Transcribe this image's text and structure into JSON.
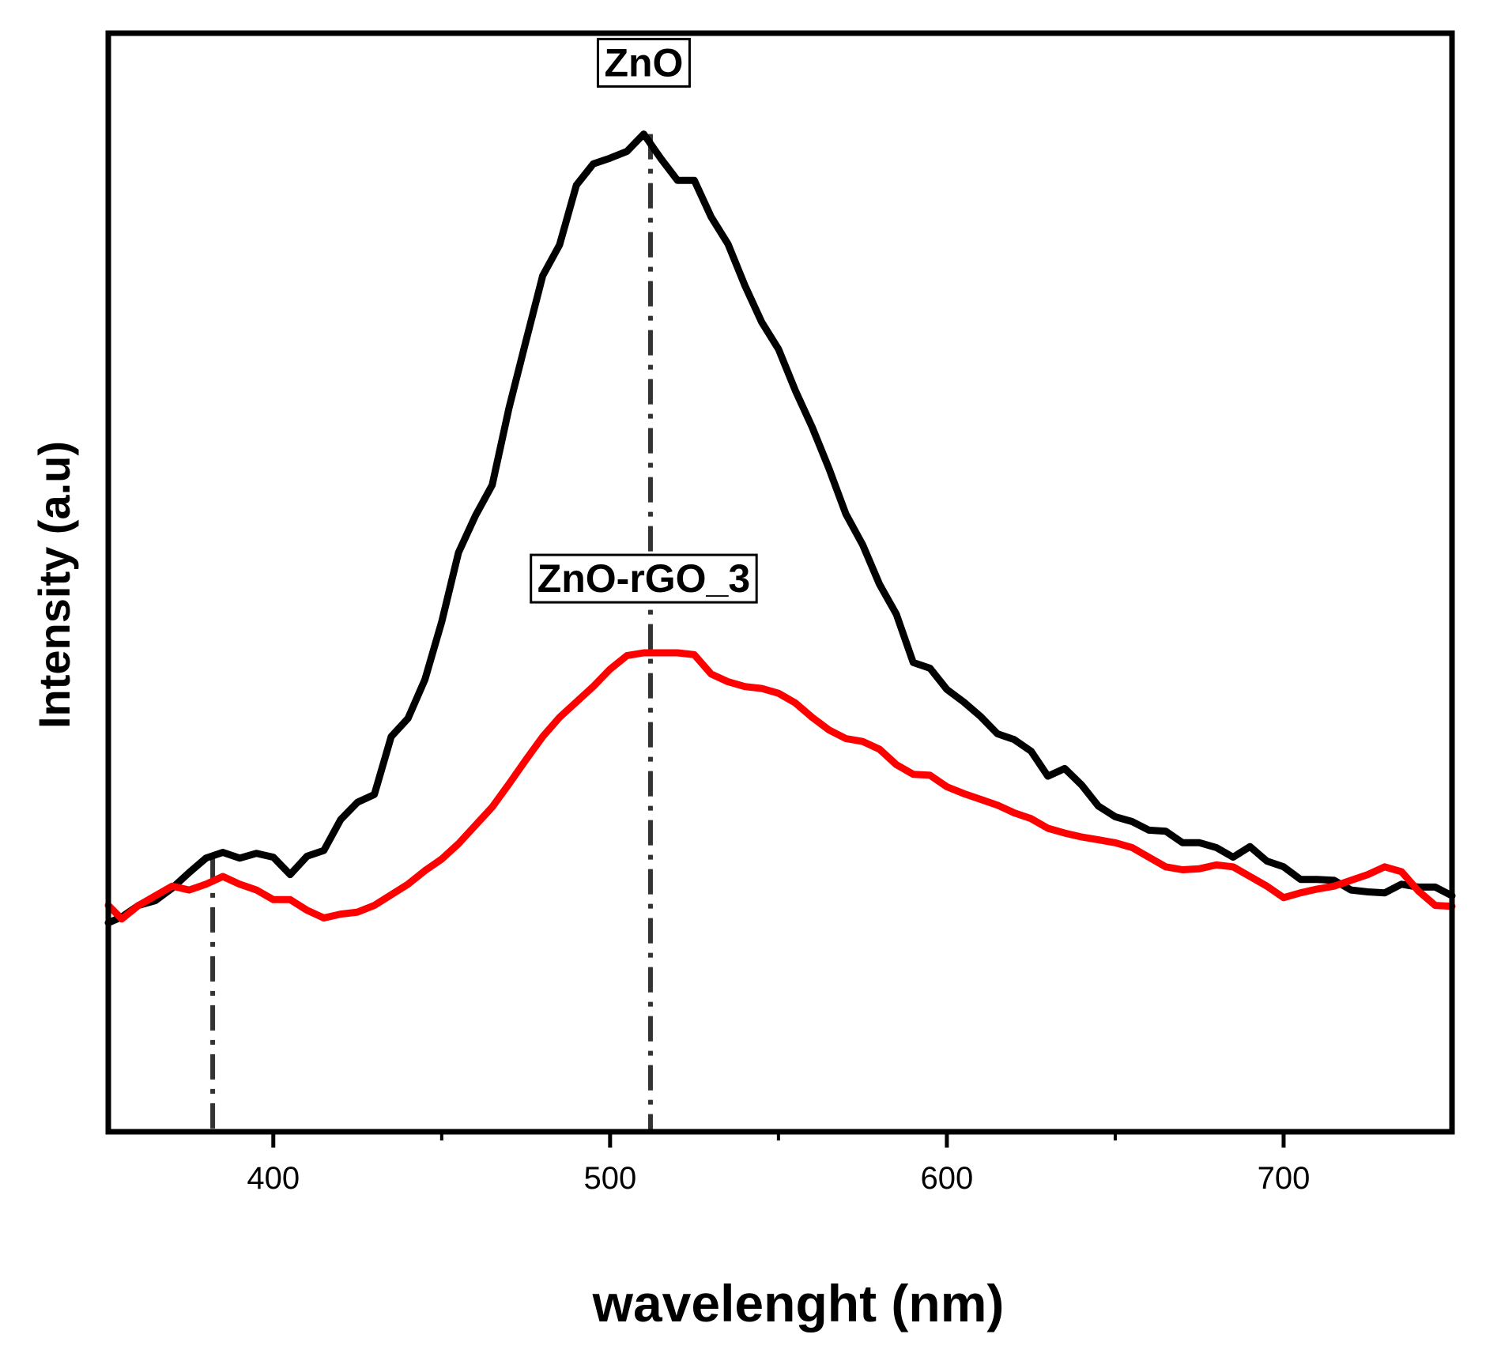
{
  "chart_data": {
    "type": "line",
    "xlabel": "wavelenght (nm)",
    "ylabel": "Intensity (a.u)",
    "xlim": [
      351,
      750
    ],
    "ylim": [
      0,
      100
    ],
    "x_ticks": [
      400,
      500,
      600,
      700
    ],
    "minor_x_ticks": [
      450,
      550,
      650
    ],
    "y_ticks_shown": false,
    "grid": false,
    "legend": "none",
    "series": [
      {
        "color": "#000000",
        "x": [
          351,
          355,
          360,
          365,
          370,
          375,
          380,
          385,
          390,
          395,
          400,
          405,
          410,
          415,
          420,
          425,
          430,
          435,
          440,
          445,
          450,
          455,
          460,
          465,
          470,
          475,
          480,
          485,
          490,
          495,
          500,
          505,
          510,
          515,
          520,
          525,
          530,
          535,
          540,
          545,
          550,
          555,
          560,
          565,
          570,
          575,
          580,
          585,
          590,
          595,
          600,
          605,
          610,
          615,
          620,
          625,
          630,
          635,
          640,
          645,
          650,
          655,
          660,
          665,
          670,
          675,
          680,
          685,
          690,
          695,
          700,
          705,
          710,
          715,
          720,
          725,
          730,
          735,
          740,
          745,
          750
        ],
        "values": [
          10.2,
          10.8,
          12.0,
          12.5,
          13.8,
          15.4,
          16.9,
          17.5,
          16.9,
          17.4,
          17.0,
          15.2,
          17.1,
          17.7,
          20.9,
          22.7,
          23.5,
          29.5,
          31.4,
          35.4,
          41.4,
          48.6,
          52.4,
          55.6,
          63.6,
          70.5,
          77.3,
          80.5,
          86.7,
          88.9,
          89.5,
          90.2,
          92.0,
          89.5,
          87.2,
          87.2,
          83.4,
          80.6,
          76.3,
          72.5,
          69.7,
          65.4,
          61.6,
          57.3,
          52.6,
          49.4,
          45.3,
          42.2,
          37.2,
          36.6,
          34.4,
          33.1,
          31.6,
          29.8,
          29.2,
          28.0,
          25.4,
          26.2,
          24.5,
          22.3,
          21.2,
          20.7,
          19.8,
          19.7,
          18.5,
          18.5,
          18.0,
          17.0,
          18.1,
          16.6,
          16.0,
          14.7,
          14.7,
          14.6,
          13.6,
          13.4,
          13.3,
          14.2,
          13.9,
          13.9,
          13.0
        ]
      },
      {
        "color": "#ff0000",
        "x": [
          351,
          355,
          360,
          365,
          370,
          375,
          380,
          385,
          390,
          395,
          400,
          405,
          410,
          415,
          420,
          425,
          430,
          435,
          440,
          445,
          450,
          455,
          460,
          465,
          470,
          475,
          480,
          485,
          490,
          495,
          500,
          505,
          510,
          515,
          520,
          525,
          530,
          535,
          540,
          545,
          550,
          555,
          560,
          565,
          570,
          575,
          580,
          585,
          590,
          595,
          600,
          605,
          610,
          615,
          620,
          625,
          630,
          635,
          640,
          645,
          650,
          655,
          660,
          665,
          670,
          675,
          680,
          685,
          690,
          695,
          700,
          705,
          710,
          715,
          720,
          725,
          730,
          735,
          740,
          745,
          750
        ],
        "values": [
          12.0,
          10.6,
          12.0,
          13.0,
          14.0,
          13.6,
          14.2,
          15.0,
          14.2,
          13.6,
          12.6,
          12.6,
          11.5,
          10.7,
          11.1,
          11.3,
          12.0,
          13.1,
          14.2,
          15.6,
          16.8,
          18.4,
          20.3,
          22.2,
          24.6,
          27.1,
          29.5,
          31.5,
          33.1,
          34.7,
          36.5,
          37.9,
          38.2,
          38.2,
          38.2,
          38.0,
          36.0,
          35.2,
          34.7,
          34.5,
          34.0,
          33.0,
          31.5,
          30.2,
          29.3,
          29.0,
          28.2,
          26.6,
          25.6,
          25.5,
          24.3,
          23.6,
          23.0,
          22.4,
          21.6,
          21.0,
          20.0,
          19.5,
          19.1,
          18.8,
          18.5,
          18.0,
          17.0,
          16.0,
          15.7,
          15.8,
          16.2,
          16.0,
          15.0,
          14.0,
          12.8,
          13.3,
          13.7,
          14.0,
          14.6,
          15.2,
          16.0,
          15.5,
          13.5,
          12.0,
          11.9
        ]
      }
    ],
    "markers": [
      {
        "x": 382,
        "y": 16.9
      },
      {
        "x": 512,
        "y": 92.0
      }
    ],
    "annotations": [
      {
        "text": "ZnO",
        "x": 510,
        "y": 98
      },
      {
        "text": "ZnO-rGO_3",
        "x": 510,
        "y": 44.5
      }
    ]
  }
}
